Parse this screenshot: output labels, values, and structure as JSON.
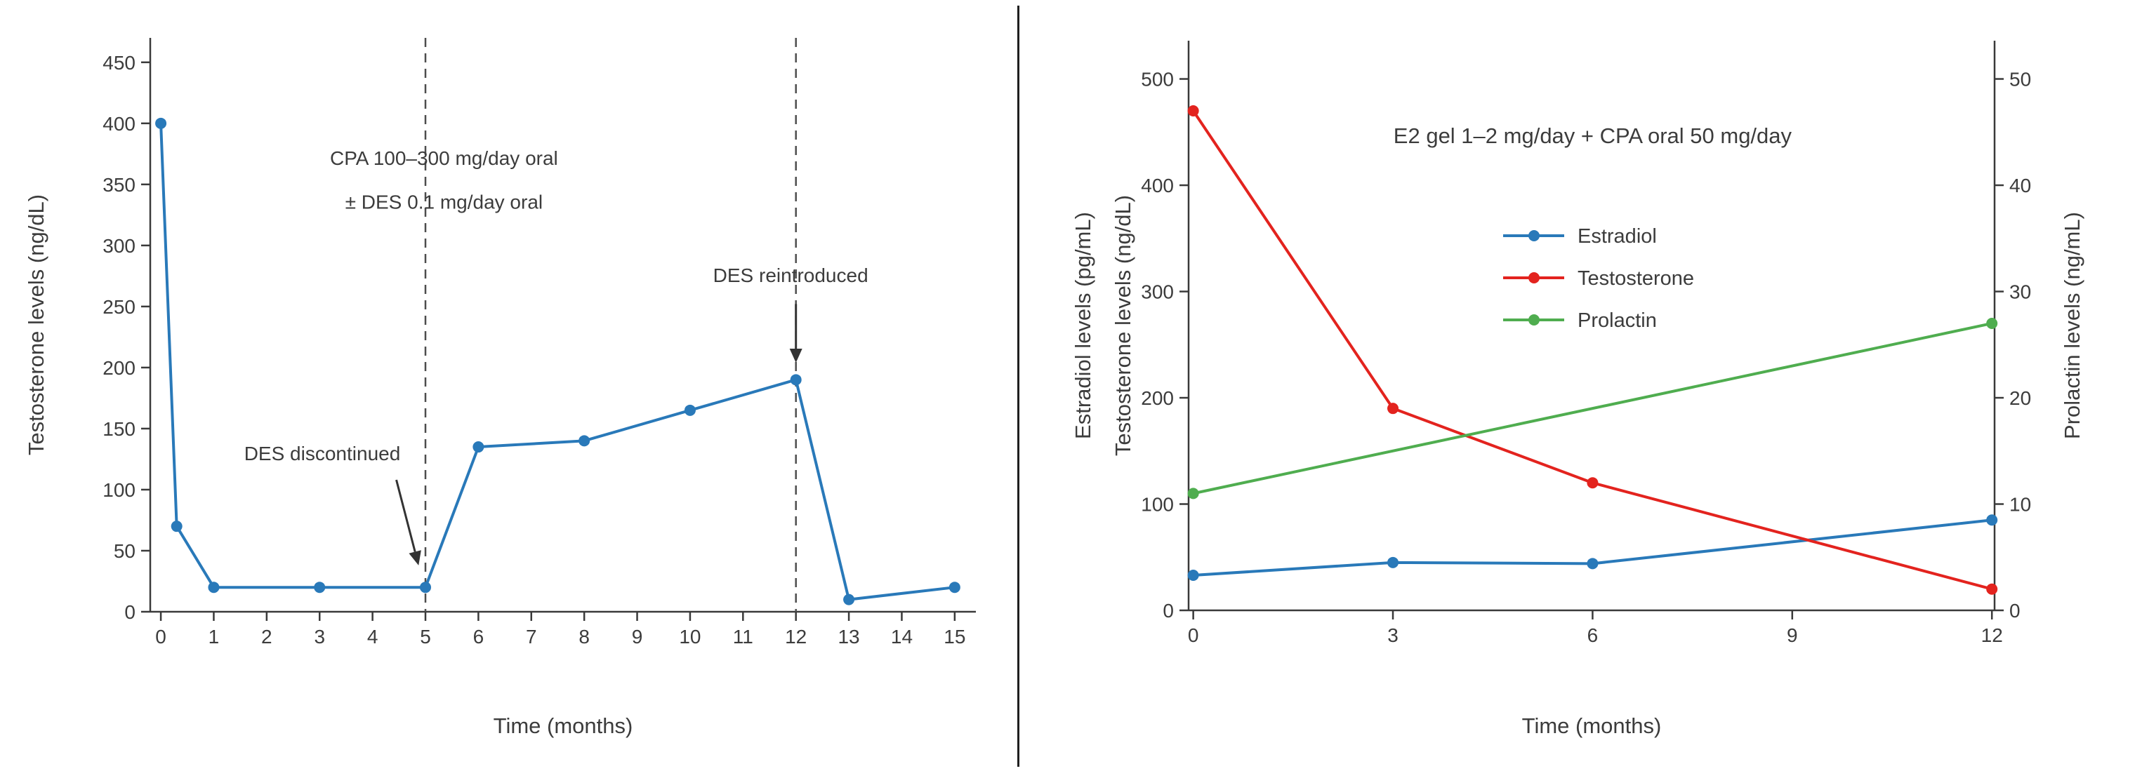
{
  "chart_data": [
    {
      "id": "left",
      "type": "line",
      "xlabel": "Time (months)",
      "ylabel": "Testosterone levels (ng/dL)",
      "xlim": [
        -0.2,
        15.4
      ],
      "ylim": [
        0,
        470
      ],
      "xticks": [
        0,
        1,
        2,
        3,
        4,
        5,
        6,
        7,
        8,
        9,
        10,
        11,
        12,
        13,
        14,
        15
      ],
      "yticks": [
        0,
        50,
        100,
        150,
        200,
        250,
        300,
        350,
        400,
        450
      ],
      "grid": false,
      "series": [
        {
          "name": "Testosterone",
          "color": "#2979b9",
          "axis": "left",
          "x": [
            0,
            0.3,
            1,
            3,
            5,
            6,
            8,
            10,
            12,
            13,
            15
          ],
          "y": [
            400,
            70,
            20,
            20,
            20,
            135,
            140,
            165,
            190,
            10,
            20
          ]
        }
      ],
      "vlines": [
        {
          "x": 5,
          "style": "dashed"
        },
        {
          "x": 12,
          "style": "dashed"
        }
      ],
      "annotations": [
        {
          "text": "CPA 100–300 mg/day oral",
          "x": 5.35,
          "y": 366
        },
        {
          "text": "± DES 0.1 mg/day oral",
          "x": 5.35,
          "y": 330
        },
        {
          "text": "DES discontinued",
          "x": 3.05,
          "y": 124,
          "arrow": {
            "x1": 4.45,
            "y1": 108,
            "x2": 4.87,
            "y2": 38
          }
        },
        {
          "text": "DES reintroduced",
          "x": 11.9,
          "y": 270,
          "arrow": {
            "x1": 12,
            "y1": 252,
            "x2": 12,
            "y2": 204
          }
        }
      ]
    },
    {
      "id": "right",
      "type": "line",
      "title": "E2 gel 1–2 mg/day + CPA oral 50 mg/day",
      "xlabel": "Time (months)",
      "ylabels_left": [
        "Estradiol levels (pg/mL)",
        "Testosterone levels (ng/dL)"
      ],
      "ylabel_right": "Prolactin levels (ng/mL)",
      "xlim": [
        -0.07,
        12.04
      ],
      "ylim": [
        0,
        536
      ],
      "y2lim": [
        0,
        53.6
      ],
      "xticks": [
        0,
        3,
        6,
        9,
        12
      ],
      "yticks": [
        0,
        100,
        200,
        300,
        400,
        500
      ],
      "y2ticks": [
        0,
        10,
        20,
        30,
        40,
        50
      ],
      "grid": false,
      "legend": {
        "position": "upper-center",
        "labels": [
          "Estradiol",
          "Testosterone",
          "Prolactin"
        ]
      },
      "series": [
        {
          "name": "Estradiol",
          "color": "#2979b9",
          "axis": "left",
          "x": [
            0,
            3,
            6,
            12
          ],
          "y": [
            33,
            45,
            44,
            85
          ]
        },
        {
          "name": "Testosterone",
          "color": "#e3231e",
          "axis": "left",
          "x": [
            0,
            3,
            6,
            12
          ],
          "y": [
            470,
            190,
            120,
            20
          ]
        },
        {
          "name": "Prolactin",
          "color": "#4fad4f",
          "axis": "right",
          "x": [
            0,
            12
          ],
          "y": [
            11,
            27
          ]
        }
      ]
    }
  ],
  "colors": {
    "spine": "#3a3a3a",
    "text": "#3c3c3c",
    "dashed_line": "#4d4d4d",
    "arrow": "#333333",
    "divider": "#1f1f1f",
    "blue": "#2979b9",
    "red": "#e3231e",
    "green": "#4fad4f"
  }
}
